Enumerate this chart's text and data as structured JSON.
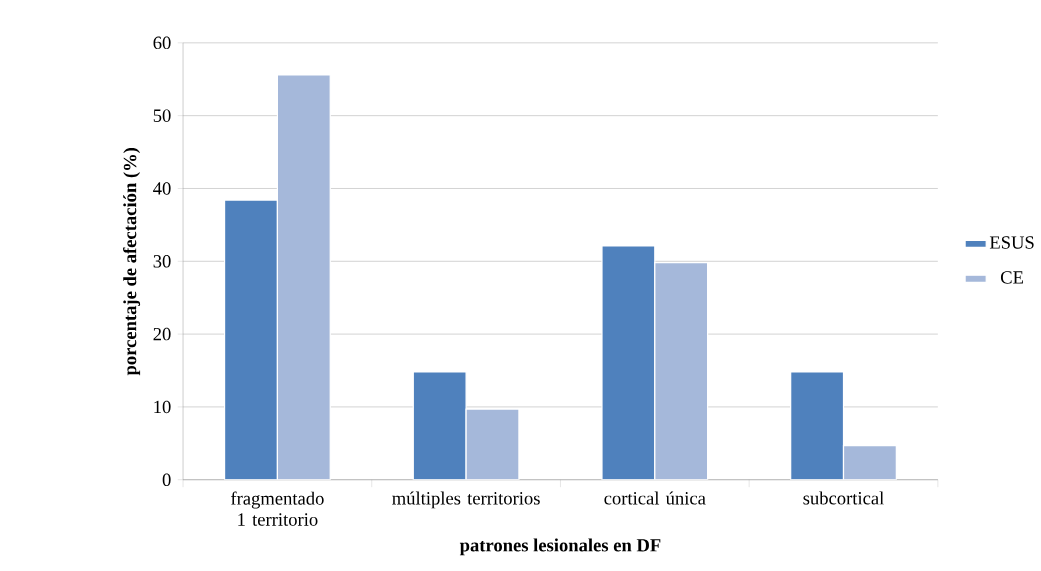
{
  "chart_data": {
    "type": "bar",
    "xlabel": "patrones lesionales en DF",
    "ylabel": "porcentaje de afectación (%)",
    "categories": [
      "fragmentado 1 territorio",
      "múltiples territorios",
      "cortical única",
      "subcortical"
    ],
    "series": [
      {
        "name": "ESUS",
        "color": "#4f81bd",
        "values": [
          38.4,
          14.8,
          32.1,
          14.8
        ]
      },
      {
        "name": "CE",
        "color": "#a5b8da",
        "values": [
          55.6,
          9.7,
          29.8,
          4.7
        ]
      }
    ],
    "ylim": [
      0,
      60
    ],
    "yticks": [
      0,
      10,
      20,
      30,
      40,
      50,
      60
    ],
    "grid": "y",
    "legend": "right"
  }
}
